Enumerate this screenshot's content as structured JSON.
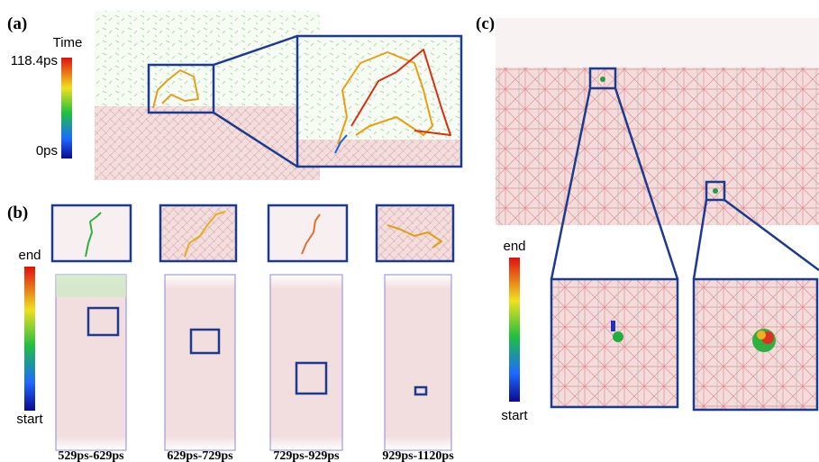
{
  "panels": [
    {
      "label": "(a)",
      "colorbar": {
        "title": "Time",
        "max_label": "118.4ps",
        "min_label": "0ps"
      }
    },
    {
      "label": "(b)",
      "colorbar": {
        "max_label": "end",
        "min_label": "start"
      },
      "time_windows": [
        "529ps-629ps",
        "629ps-729ps",
        "729ps-929ps",
        "929ps-1120ps"
      ]
    },
    {
      "label": "(c)",
      "colorbar": {
        "max_label": "end",
        "min_label": "start"
      }
    }
  ]
}
